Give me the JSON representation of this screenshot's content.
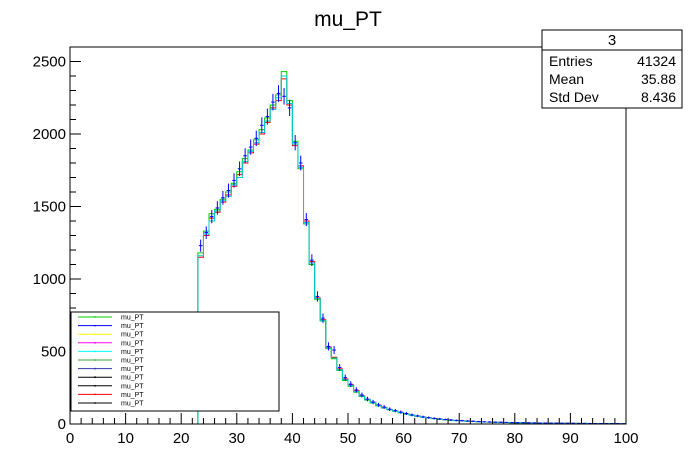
{
  "chart_data": {
    "type": "histogram",
    "title": "mu_PT",
    "xlabel": "",
    "ylabel": "",
    "xlim": [
      0,
      100
    ],
    "ylim": [
      0,
      2600
    ],
    "xticks": [
      0,
      10,
      20,
      30,
      40,
      50,
      60,
      70,
      80,
      90,
      100
    ],
    "yticks": [
      0,
      500,
      1000,
      1500,
      2000,
      2500
    ],
    "bin_width": 1,
    "stats": {
      "name": "3",
      "rows": [
        {
          "label": "Entries",
          "value": "41324"
        },
        {
          "label": "Mean",
          "value": "35.88"
        },
        {
          "label": "Std Dev",
          "value": "8.436"
        }
      ]
    },
    "legend": {
      "placement": "bottom-left",
      "entries": [
        {
          "label": "mu_PT",
          "color": "#00cc00"
        },
        {
          "label": "mu_PT",
          "color": "#0000ff"
        },
        {
          "label": "mu_PT",
          "color": "#ffff00"
        },
        {
          "label": "mu_PT",
          "color": "#ff00ff"
        },
        {
          "label": "mu_PT",
          "color": "#00ffff"
        },
        {
          "label": "mu_PT",
          "color": "#33aa33"
        },
        {
          "label": "mu_PT",
          "color": "#3333aa"
        },
        {
          "label": "mu_PT",
          "color": "#000000"
        },
        {
          "label": "mu_PT",
          "color": "#000000"
        },
        {
          "label": "mu_PT",
          "color": "#ff0000"
        },
        {
          "label": "mu_PT",
          "color": "#000000"
        }
      ]
    },
    "series": [
      {
        "name": "mu_PT",
        "color": "#ff0000",
        "values": [
          0,
          0,
          0,
          0,
          0,
          0,
          0,
          0,
          0,
          0,
          0,
          0,
          0,
          0,
          0,
          0,
          0,
          0,
          0,
          0,
          0,
          0,
          0,
          1150,
          1300,
          1420,
          1460,
          1530,
          1580,
          1640,
          1720,
          1800,
          1870,
          1930,
          2000,
          2080,
          2180,
          2230,
          2380,
          2200,
          1920,
          1780,
          1400,
          1120,
          870,
          720,
          530,
          460,
          380,
          310,
          270,
          230,
          195,
          170,
          150,
          130,
          115,
          100,
          90,
          80,
          70,
          62,
          55,
          48,
          43,
          38,
          34,
          30,
          27,
          24,
          22,
          20,
          18,
          16,
          14,
          13,
          12,
          11,
          10,
          9,
          9,
          8,
          8,
          7,
          7,
          6,
          6,
          5,
          5,
          5,
          4,
          4,
          4,
          3,
          3,
          3,
          3,
          3,
          2,
          2
        ]
      },
      {
        "name": "mu_PT",
        "color": "#00cc00",
        "values": [
          0,
          0,
          0,
          0,
          0,
          0,
          0,
          0,
          0,
          0,
          0,
          0,
          0,
          0,
          0,
          0,
          0,
          0,
          0,
          0,
          0,
          0,
          0,
          1180,
          1330,
          1450,
          1480,
          1550,
          1600,
          1660,
          1740,
          1830,
          1890,
          1960,
          2030,
          2110,
          2200,
          2270,
          2430,
          2230,
          1950,
          1760,
          1380,
          1100,
          860,
          710,
          520,
          450,
          370,
          300,
          260,
          220,
          190,
          165,
          145,
          125,
          110,
          98,
          88,
          78,
          68,
          60,
          53,
          47,
          42,
          37,
          33,
          29,
          26,
          23,
          21,
          19,
          17,
          15,
          14,
          13,
          12,
          11,
          10,
          9,
          9,
          8,
          8,
          7,
          7,
          6,
          6,
          5,
          5,
          5,
          4,
          4,
          4,
          3,
          3,
          3,
          3,
          3,
          2,
          2
        ]
      },
      {
        "name": "mu_PT",
        "color": "#00cccc",
        "values": [
          0,
          0,
          0,
          0,
          0,
          0,
          0,
          0,
          0,
          0,
          0,
          0,
          0,
          0,
          0,
          0,
          0,
          0,
          0,
          0,
          0,
          0,
          0,
          1160,
          1310,
          1400,
          1470,
          1540,
          1570,
          1650,
          1700,
          1810,
          1880,
          1940,
          2010,
          2090,
          2170,
          2250,
          2400,
          2210,
          1930,
          1770,
          1390,
          1110,
          865,
          715,
          525,
          455,
          375,
          305,
          265,
          225,
          192,
          168,
          148,
          128,
          112,
          99,
          89,
          79,
          69,
          61,
          54,
          47,
          42,
          37,
          33,
          29,
          26,
          23,
          21,
          19,
          17,
          15,
          14,
          13,
          12,
          11,
          10,
          9,
          9,
          8,
          8,
          7,
          7,
          6,
          6,
          5,
          5,
          5,
          4,
          4,
          4,
          3,
          3,
          3,
          3,
          3,
          2,
          2
        ]
      },
      {
        "name": "mu_PT",
        "color": "#0000ff",
        "errors": true,
        "values": [
          0,
          0,
          0,
          0,
          0,
          0,
          0,
          0,
          0,
          0,
          0,
          0,
          0,
          0,
          0,
          0,
          0,
          0,
          0,
          0,
          0,
          0,
          0,
          1230,
          1320,
          1430,
          1490,
          1560,
          1610,
          1680,
          1760,
          1850,
          1910,
          1970,
          2060,
          2120,
          2220,
          2280,
          2260,
          2180,
          1940,
          1800,
          1410,
          1130,
          880,
          730,
          535,
          510,
          390,
          320,
          275,
          235,
          200,
          172,
          152,
          132,
          117,
          102,
          92,
          82,
          72,
          63,
          56,
          49,
          44,
          39,
          35,
          31,
          28,
          25,
          23,
          21,
          19,
          17,
          15,
          14,
          13,
          12,
          11,
          10,
          9,
          9,
          8,
          8,
          7,
          7,
          6,
          6,
          5,
          5,
          5,
          4,
          4,
          4,
          3,
          3,
          3,
          3,
          3,
          2
        ]
      }
    ]
  }
}
